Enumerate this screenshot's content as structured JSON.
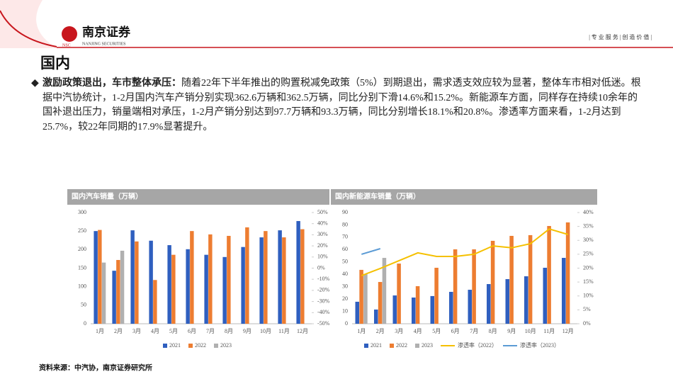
{
  "header": {
    "brand": "南京证券",
    "brand_en": "NANJING SECURITIES",
    "slogan": "| 专 业 服 务 | 创 造 价 值 |"
  },
  "title": "国内",
  "paragraph": {
    "lead": "激励政策退出，车市整体承压：",
    "text": "随着22年下半年推出的购置税减免政策（5%）到期退出，需求透支效应较为显著，整体车市相对低迷。根据中汽协统计，1-2月国内汽车产销分别实现362.6万辆和362.5万辆，同比分别下滑14.6%和15.2%。新能源车方面，同样存在持续10余年的国补退出压力，销量端相对承压，1-2月产销分别达到97.7万辆和93.3万辆，同比分别增长18.1%和20.8%。渗透率方面来看，1-2月达到25.7%，较22年同期的17.9%显著提升。"
  },
  "source": "资料来源：中汽协，南京证券研究所",
  "chart_data": [
    {
      "type": "bar",
      "title": "国内汽车销量（万辆）",
      "categories": [
        "1月",
        "2月",
        "3月",
        "4月",
        "5月",
        "6月",
        "7月",
        "8月",
        "9月",
        "10月",
        "11月",
        "12月"
      ],
      "series": [
        {
          "name": "2021",
          "color": "#2f5fbf",
          "values": [
            250,
            143,
            252,
            224,
            212,
            201,
            186,
            180,
            207,
            233,
            252,
            277
          ]
        },
        {
          "name": "2022",
          "color": "#ed7d31",
          "values": [
            253,
            172,
            222,
            118,
            186,
            250,
            241,
            237,
            260,
            250,
            233,
            255
          ]
        },
        {
          "name": "2023",
          "color": "#b0b0b0",
          "values": [
            165,
            197,
            null,
            null,
            null,
            null,
            null,
            null,
            null,
            null,
            null,
            null
          ]
        }
      ],
      "ylim": [
        0,
        300
      ],
      "yticks": [
        0,
        50,
        100,
        150,
        200,
        250,
        300
      ],
      "y2lim": [
        -50,
        50
      ],
      "y2ticks": [
        {
          "value": -50,
          "label": "-50%"
        },
        {
          "value": -40,
          "label": "-40%"
        },
        {
          "value": -30,
          "label": "-30%"
        },
        {
          "value": -20,
          "label": "-20%"
        },
        {
          "value": -10,
          "label": "-10%"
        },
        {
          "value": 0,
          "label": "0%"
        },
        {
          "value": 10,
          "label": "10%"
        },
        {
          "value": 20,
          "label": "20%"
        },
        {
          "value": 30,
          "label": "30%"
        },
        {
          "value": 40,
          "label": "40%"
        },
        {
          "value": 50,
          "label": "50%"
        }
      ],
      "legend": "bottom"
    },
    {
      "type": "bar",
      "title": "国内新能源车销量（万辆）",
      "categories": [
        "1月",
        "2月",
        "3月",
        "4月",
        "5月",
        "6月",
        "7月",
        "8月",
        "9月",
        "10月",
        "11月",
        "12月"
      ],
      "series": [
        {
          "name": "2021",
          "color": "#2f5fbf",
          "values": [
            17.8,
            11.5,
            22.9,
            21.2,
            22.4,
            25.8,
            27.5,
            32.1,
            36.1,
            38.4,
            45.3,
            53.3
          ]
        },
        {
          "name": "2022",
          "color": "#ed7d31",
          "values": [
            43.6,
            33.8,
            48.7,
            30.4,
            45.3,
            60.2,
            60.2,
            67.1,
            71.1,
            71.7,
            79.1,
            82.0
          ]
        },
        {
          "name": "2023",
          "color": "#b0b0b0",
          "values": [
            40.1,
            53.3,
            null,
            null,
            null,
            null,
            null,
            null,
            null,
            null,
            null,
            null
          ]
        },
        {
          "name": "渗透率（2022）",
          "color": "#f5c000",
          "type": "line",
          "axis": "y2",
          "values": [
            17.3,
            19.9,
            22.7,
            25.5,
            24.2,
            24.2,
            25.0,
            28.0,
            27.3,
            28.8,
            34.1,
            32.1
          ]
        },
        {
          "name": "渗透率（2023）",
          "color": "#5b9bd5",
          "type": "line",
          "axis": "y2",
          "values": [
            25.0,
            27.0,
            null,
            null,
            null,
            null,
            null,
            null,
            null,
            null,
            null,
            null
          ]
        }
      ],
      "ylim": [
        0,
        90
      ],
      "yticks": [
        0,
        10,
        20,
        30,
        40,
        50,
        60,
        70,
        80,
        90
      ],
      "y2lim": [
        0,
        40
      ],
      "y2ticks": [
        {
          "value": 0,
          "label": "0%"
        },
        {
          "value": 5,
          "label": "5%"
        },
        {
          "value": 10,
          "label": "10%"
        },
        {
          "value": 15,
          "label": "15%"
        },
        {
          "value": 20,
          "label": "20%"
        },
        {
          "value": 25,
          "label": "25%"
        },
        {
          "value": 30,
          "label": "30%"
        },
        {
          "value": 35,
          "label": "35%"
        },
        {
          "value": 40,
          "label": "40%"
        }
      ],
      "legend": "bottom"
    }
  ]
}
